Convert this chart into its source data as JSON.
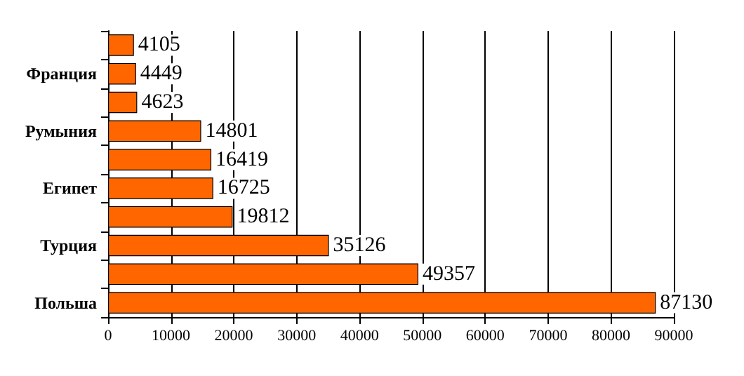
{
  "chart_data": {
    "type": "bar",
    "orientation": "horizontal",
    "categories": [
      null,
      "Франция",
      null,
      "Румыния",
      null,
      "Египет",
      null,
      "Турция",
      null,
      "Польша"
    ],
    "values": [
      4105,
      4449,
      4623,
      14801,
      16419,
      16725,
      19812,
      35126,
      49357,
      87130
    ],
    "color": "#ff6600",
    "xlim": [
      0,
      90000
    ],
    "xticks": [
      0,
      10000,
      20000,
      30000,
      40000,
      50000,
      60000,
      70000,
      80000,
      90000
    ],
    "grid": "x",
    "data_labels": true
  }
}
